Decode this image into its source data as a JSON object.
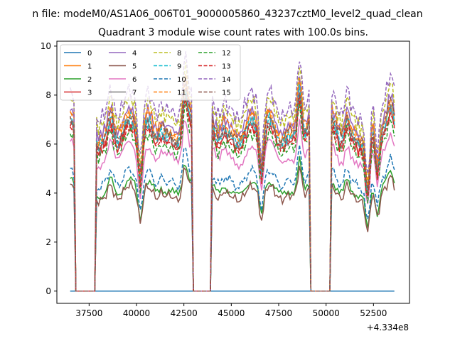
{
  "chart_data": {
    "type": "line",
    "suptitle": "n file: modeM0/AS1A06_006T01_9000005860_43237cztM0_level2_quad_clean",
    "title": "Quadrant 3 module wise count rates with 100.0s bins.",
    "xlabel": "",
    "ylabel": "",
    "x_offset_label": "+4.334e8",
    "xlim": [
      35800,
      54400
    ],
    "ylim": [
      -0.5,
      10.2
    ],
    "x_ticks": [
      37500,
      40000,
      42500,
      45000,
      47500,
      50000,
      52500
    ],
    "x_tick_labels": [
      "37500",
      "40000",
      "42500",
      "45000",
      "47500",
      "50000",
      "52500"
    ],
    "y_ticks": [
      0,
      2,
      4,
      6,
      8,
      10
    ],
    "y_tick_labels": [
      "0",
      "2",
      "4",
      "6",
      "8",
      "10"
    ],
    "grid": false,
    "legend": "top-left, 4 columns",
    "segments": [
      [
        36500,
        36700
      ],
      [
        37900,
        42900
      ],
      [
        44000,
        49100
      ],
      [
        50300,
        53600
      ]
    ],
    "gaps": [
      [
        36700,
        37900
      ],
      [
        42900,
        44000
      ],
      [
        49100,
        50300
      ]
    ],
    "series": [
      {
        "name": "0",
        "color": "#1f77b4",
        "dash": "solid",
        "base": 0.0
      },
      {
        "name": "1",
        "color": "#ff7f0e",
        "dash": "solid",
        "base": 6.7
      },
      {
        "name": "2",
        "color": "#2ca02c",
        "dash": "solid",
        "base": 4.2
      },
      {
        "name": "3",
        "color": "#d62728",
        "dash": "solid",
        "base": 6.3
      },
      {
        "name": "4",
        "color": "#9467bd",
        "dash": "solid",
        "base": 6.9
      },
      {
        "name": "5",
        "color": "#8c564b",
        "dash": "solid",
        "base": 4.0
      },
      {
        "name": "6",
        "color": "#e377c2",
        "dash": "solid",
        "base": 5.6
      },
      {
        "name": "7",
        "color": "#7f7f7f",
        "dash": "solid",
        "base": 6.4
      },
      {
        "name": "8",
        "color": "#bcbd22",
        "dash": "dashed",
        "base": 7.3
      },
      {
        "name": "9",
        "color": "#17becf",
        "dash": "dashed",
        "base": 6.5
      },
      {
        "name": "10",
        "color": "#1f77b4",
        "dash": "dashed",
        "base": 4.6
      },
      {
        "name": "11",
        "color": "#ff7f0e",
        "dash": "dashed",
        "base": 6.8
      },
      {
        "name": "12",
        "color": "#2ca02c",
        "dash": "dashed",
        "base": 6.0
      },
      {
        "name": "13",
        "color": "#d62728",
        "dash": "dashed",
        "base": 6.2
      },
      {
        "name": "14",
        "color": "#9467bd",
        "dash": "dashed",
        "base": 7.6
      },
      {
        "name": "15",
        "color": "#8c564b",
        "dash": "dashed",
        "base": 6.6
      }
    ]
  }
}
